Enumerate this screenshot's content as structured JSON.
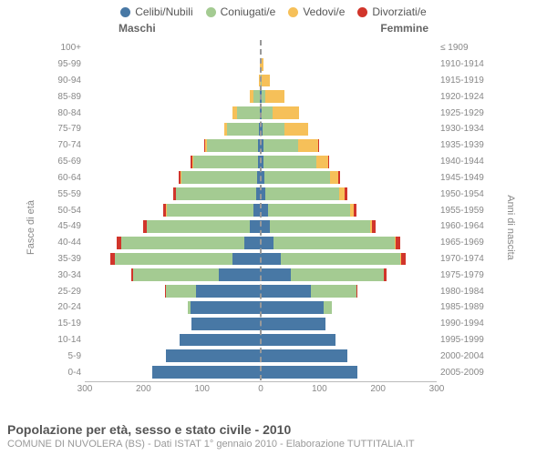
{
  "chart": {
    "type": "population-pyramid",
    "legend": [
      {
        "label": "Celibi/Nubili",
        "color": "#4878a5"
      },
      {
        "label": "Coniugati/e",
        "color": "#a4cb92"
      },
      {
        "label": "Vedovi/e",
        "color": "#f6c059"
      },
      {
        "label": "Divorziati/e",
        "color": "#d1352b"
      }
    ],
    "col_left_title": "Maschi",
    "col_right_title": "Femmine",
    "y_left_label": "Fasce di età",
    "y_right_label": "Anni di nascita",
    "x_max": 300,
    "x_ticks_left": [
      300,
      200,
      100,
      0
    ],
    "x_ticks_right": [
      0,
      100,
      200,
      300
    ],
    "background_color": "#ffffff",
    "grid_on": false,
    "bar_height_ratio": 0.78,
    "rows": [
      {
        "age": "100+",
        "birth": "≤ 1909",
        "m": [
          0,
          0,
          0,
          0
        ],
        "f": [
          0,
          0,
          0,
          0
        ]
      },
      {
        "age": "95-99",
        "birth": "1910-1914",
        "m": [
          0,
          0,
          1,
          0
        ],
        "f": [
          0,
          0,
          4,
          0
        ]
      },
      {
        "age": "90-94",
        "birth": "1915-1919",
        "m": [
          0,
          0,
          3,
          0
        ],
        "f": [
          0,
          1,
          14,
          0
        ]
      },
      {
        "age": "85-89",
        "birth": "1920-1924",
        "m": [
          1,
          12,
          5,
          0
        ],
        "f": [
          1,
          7,
          32,
          0
        ]
      },
      {
        "age": "80-84",
        "birth": "1925-1929",
        "m": [
          2,
          38,
          8,
          0
        ],
        "f": [
          2,
          18,
          46,
          0
        ]
      },
      {
        "age": "75-79",
        "birth": "1930-1934",
        "m": [
          3,
          55,
          4,
          0
        ],
        "f": [
          3,
          38,
          40,
          0
        ]
      },
      {
        "age": "70-74",
        "birth": "1935-1939",
        "m": [
          4,
          88,
          3,
          1
        ],
        "f": [
          4,
          60,
          34,
          1
        ]
      },
      {
        "age": "65-69",
        "birth": "1940-1944",
        "m": [
          5,
          110,
          2,
          2
        ],
        "f": [
          5,
          90,
          20,
          2
        ]
      },
      {
        "age": "60-64",
        "birth": "1945-1949",
        "m": [
          6,
          130,
          1,
          3
        ],
        "f": [
          6,
          112,
          14,
          3
        ]
      },
      {
        "age": "55-59",
        "birth": "1950-1954",
        "m": [
          8,
          136,
          1,
          4
        ],
        "f": [
          8,
          125,
          10,
          4
        ]
      },
      {
        "age": "50-54",
        "birth": "1955-1959",
        "m": [
          12,
          148,
          1,
          5
        ],
        "f": [
          12,
          140,
          6,
          5
        ]
      },
      {
        "age": "45-49",
        "birth": "1960-1964",
        "m": [
          18,
          176,
          1,
          6
        ],
        "f": [
          16,
          170,
          4,
          6
        ]
      },
      {
        "age": "40-44",
        "birth": "1965-1969",
        "m": [
          28,
          210,
          0,
          8
        ],
        "f": [
          22,
          206,
          2,
          8
        ]
      },
      {
        "age": "35-39",
        "birth": "1970-1974",
        "m": [
          48,
          200,
          0,
          8
        ],
        "f": [
          34,
          204,
          1,
          8
        ]
      },
      {
        "age": "30-34",
        "birth": "1975-1979",
        "m": [
          72,
          145,
          0,
          4
        ],
        "f": [
          52,
          158,
          0,
          4
        ]
      },
      {
        "age": "25-29",
        "birth": "1980-1984",
        "m": [
          110,
          52,
          0,
          1
        ],
        "f": [
          86,
          78,
          0,
          1
        ]
      },
      {
        "age": "20-24",
        "birth": "1985-1989",
        "m": [
          120,
          5,
          0,
          0
        ],
        "f": [
          108,
          14,
          0,
          0
        ]
      },
      {
        "age": "15-19",
        "birth": "1990-1994",
        "m": [
          118,
          0,
          0,
          0
        ],
        "f": [
          110,
          0,
          0,
          0
        ]
      },
      {
        "age": "10-14",
        "birth": "1995-1999",
        "m": [
          138,
          0,
          0,
          0
        ],
        "f": [
          128,
          0,
          0,
          0
        ]
      },
      {
        "age": "5-9",
        "birth": "2000-2004",
        "m": [
          162,
          0,
          0,
          0
        ],
        "f": [
          148,
          0,
          0,
          0
        ]
      },
      {
        "age": "0-4",
        "birth": "2005-2009",
        "m": [
          185,
          0,
          0,
          0
        ],
        "f": [
          165,
          0,
          0,
          0
        ]
      }
    ]
  },
  "footer": {
    "title": "Popolazione per età, sesso e stato civile - 2010",
    "subtitle": "COMUNE DI NUVOLERA (BS) - Dati ISTAT 1° gennaio 2010 - Elaborazione TUTTITALIA.IT"
  }
}
